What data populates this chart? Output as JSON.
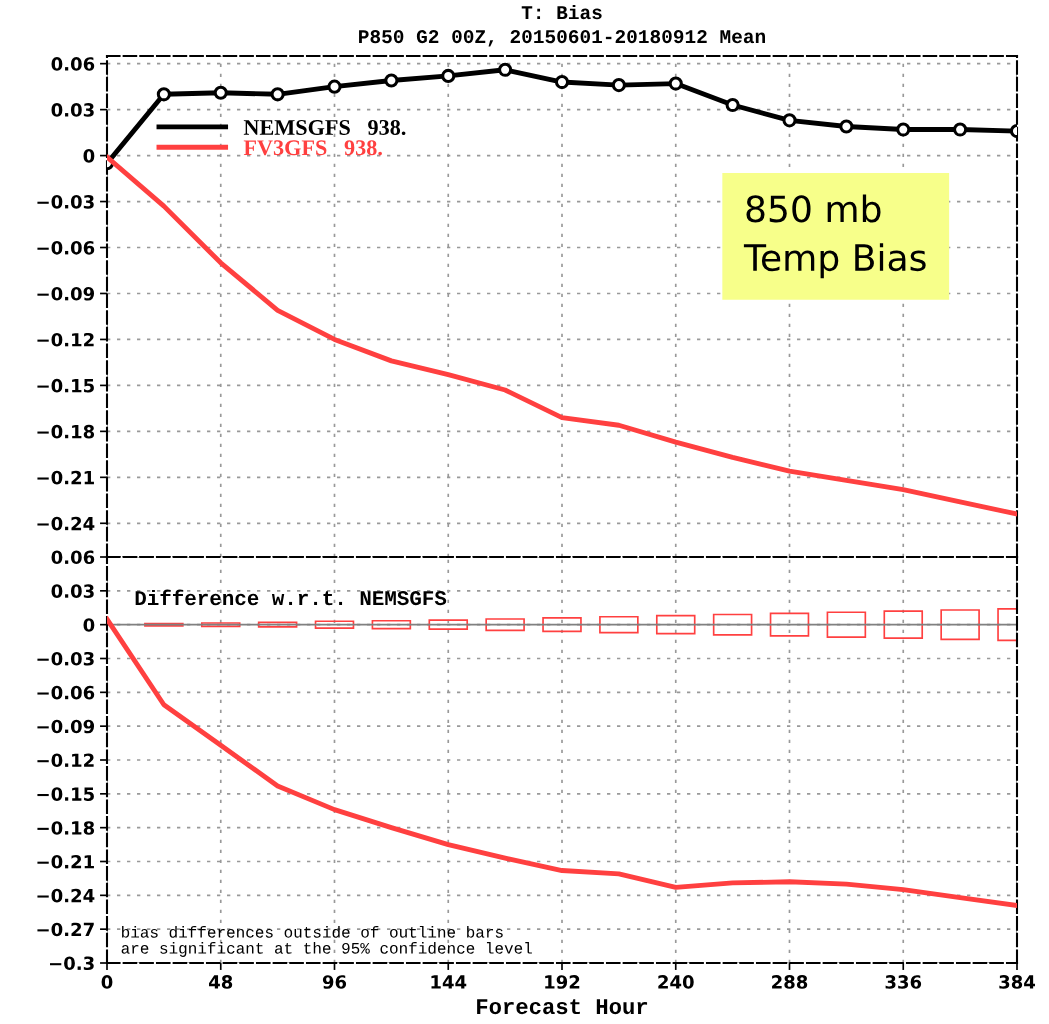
{
  "chart_data": [
    {
      "type": "line",
      "title": "T: Bias",
      "subtitle": "P850 G2 00Z, 20150601-20180912 Mean",
      "x": [
        0,
        24,
        48,
        72,
        96,
        120,
        144,
        168,
        192,
        216,
        240,
        264,
        288,
        312,
        336,
        360,
        384
      ],
      "series": [
        {
          "name": "NEMSGFS   938.",
          "color": "#000000",
          "marker": "circle",
          "values": [
            -0.005,
            0.04,
            0.041,
            0.04,
            0.045,
            0.049,
            0.052,
            0.056,
            0.048,
            0.046,
            0.047,
            0.033,
            0.023,
            0.019,
            0.017,
            0.017,
            0.016
          ]
        },
        {
          "name": "FV3GFS   938.",
          "color": "#ff4040",
          "marker": "none",
          "values": [
            -0.001,
            -0.033,
            -0.07,
            -0.101,
            -0.12,
            -0.134,
            -0.143,
            -0.153,
            -0.171,
            -0.176,
            -0.187,
            -0.197,
            -0.206,
            -0.212,
            -0.218,
            -0.226,
            -0.234
          ]
        }
      ],
      "xlim": [
        0,
        384
      ],
      "xticks": [
        0,
        48,
        96,
        144,
        192,
        240,
        288,
        336,
        384
      ],
      "ylim": [
        -0.262,
        0.065
      ],
      "yticks": [
        0.06,
        0.03,
        0,
        -0.03,
        -0.06,
        -0.09,
        -0.12,
        -0.15,
        -0.18,
        -0.21,
        -0.24
      ],
      "tick_labels": "y",
      "grid": true,
      "legend": "top left",
      "line_style": "solid",
      "annotations": [
        "850 mb\nTemp Bias"
      ]
    },
    {
      "type": "line",
      "xlabel": "Forecast Hour",
      "x": [
        0,
        24,
        48,
        72,
        96,
        120,
        144,
        168,
        192,
        216,
        240,
        264,
        288,
        312,
        336,
        360,
        384
      ],
      "series": [
        {
          "type": "line",
          "color": "#ff4040",
          "values": [
            0.005,
            -0.071,
            -0.107,
            -0.143,
            -0.164,
            -0.18,
            -0.195,
            -0.207,
            -0.218,
            -0.221,
            -0.233,
            -0.229,
            -0.228,
            -0.23,
            -0.235,
            -0.242,
            -0.249
          ]
        },
        {
          "type": "bar",
          "color": "#ff4040",
          "x": [
            24,
            48,
            72,
            96,
            120,
            144,
            168,
            192,
            216,
            240,
            264,
            288,
            312,
            336,
            360,
            384
          ],
          "base": [
            -0.001,
            -0.0015,
            -0.002,
            -0.003,
            -0.0035,
            -0.004,
            -0.005,
            -0.006,
            -0.007,
            -0.008,
            -0.009,
            -0.01,
            -0.011,
            -0.012,
            -0.013,
            -0.014
          ],
          "values": [
            0.002,
            0.003,
            0.004,
            0.006,
            0.007,
            0.008,
            0.01,
            0.012,
            0.014,
            0.016,
            0.018,
            0.02,
            0.022,
            0.024,
            0.026,
            0.028
          ]
        }
      ],
      "ref_lines": [
        {
          "axis": "y",
          "value": 0,
          "color": "#808080"
        }
      ],
      "xlim": [
        0,
        384
      ],
      "xticks": [
        0,
        48,
        96,
        144,
        192,
        240,
        288,
        336,
        384
      ],
      "ylim": [
        -0.3,
        0.06
      ],
      "yticks": [
        0.06,
        0.03,
        0,
        -0.03,
        -0.06,
        -0.09,
        -0.12,
        -0.15,
        -0.18,
        -0.21,
        -0.24,
        -0.27,
        -0.3
      ],
      "grid": true,
      "line_style": "solid",
      "annotations": [
        "Difference w.r.t. NEMSGFS",
        "bias differences outside of outline bars\nare significant at the 95% confidence level"
      ]
    }
  ]
}
